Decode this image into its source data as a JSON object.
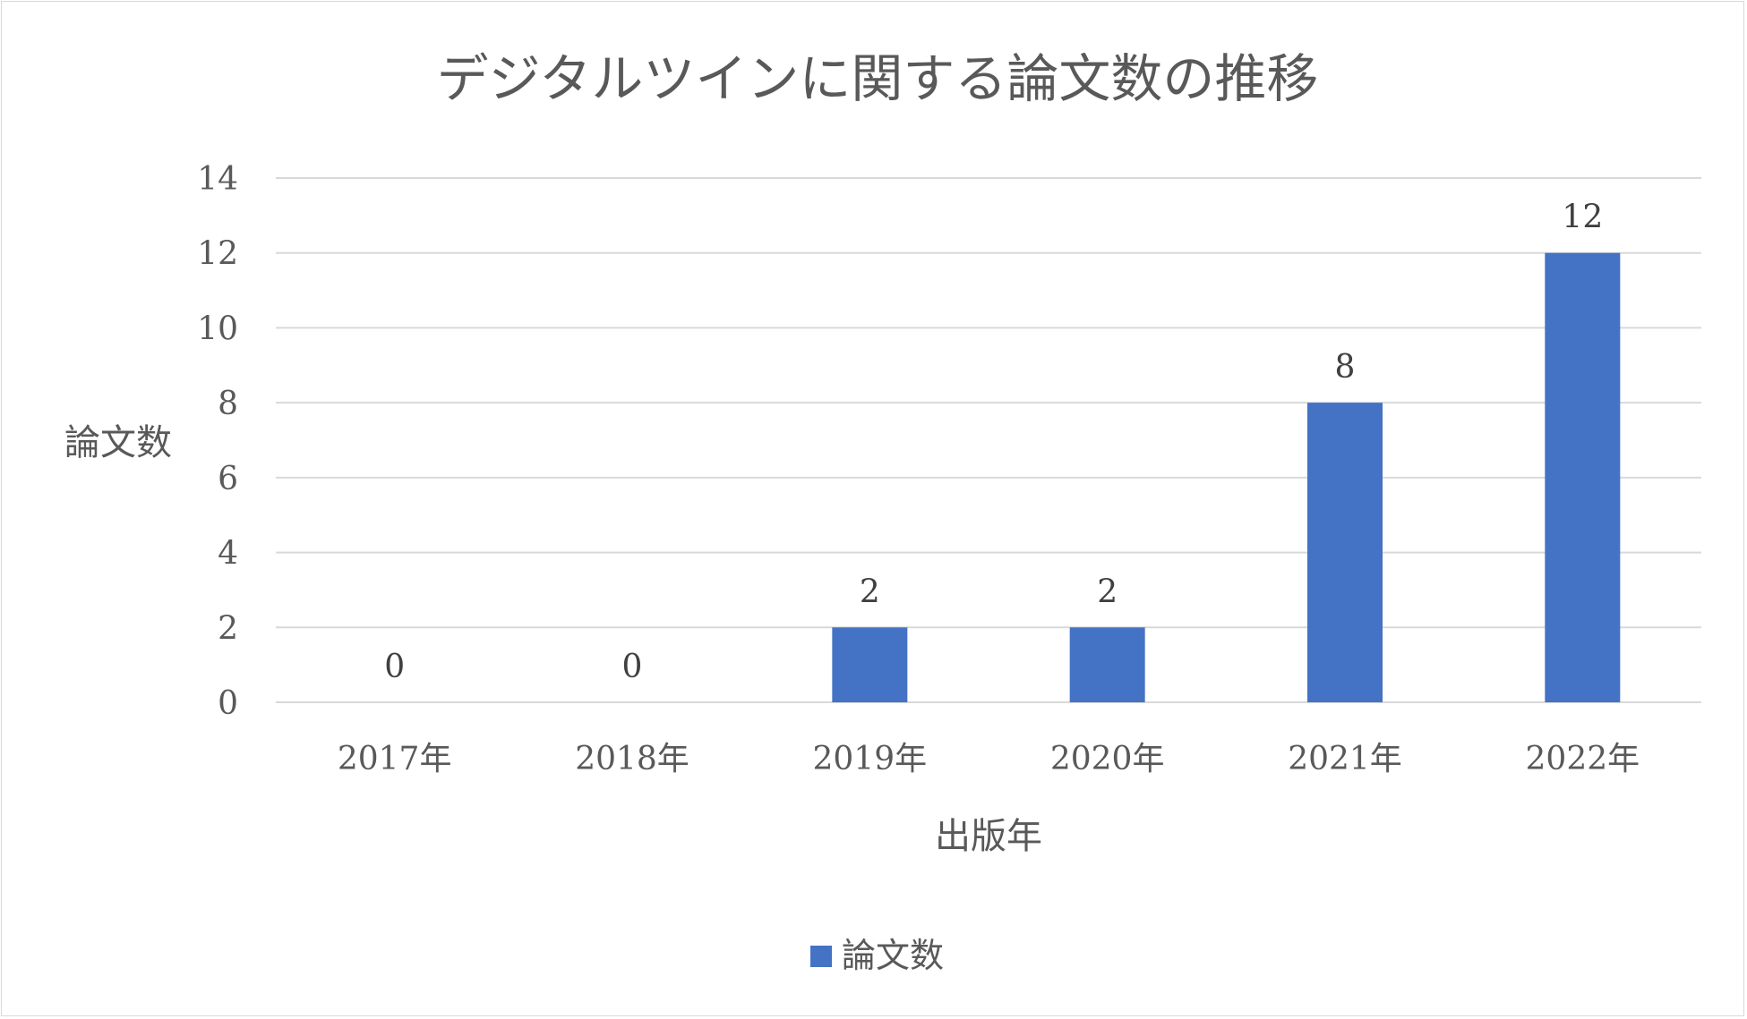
{
  "chart_data": {
    "type": "bar",
    "title": "デジタルツインに関する論文数の推移",
    "xlabel": "出版年",
    "ylabel": "論文数",
    "categories": [
      "2017年",
      "2018年",
      "2019年",
      "2020年",
      "2021年",
      "2022年"
    ],
    "series": [
      {
        "name": "論文数",
        "values": [
          0,
          0,
          2,
          2,
          8,
          12
        ],
        "color": "#4472C4"
      }
    ],
    "ylim": [
      0,
      14
    ],
    "yticks": [
      0,
      2,
      4,
      6,
      8,
      10,
      12,
      14
    ],
    "grid": true,
    "data_labels": true,
    "legend_position": "bottom"
  }
}
